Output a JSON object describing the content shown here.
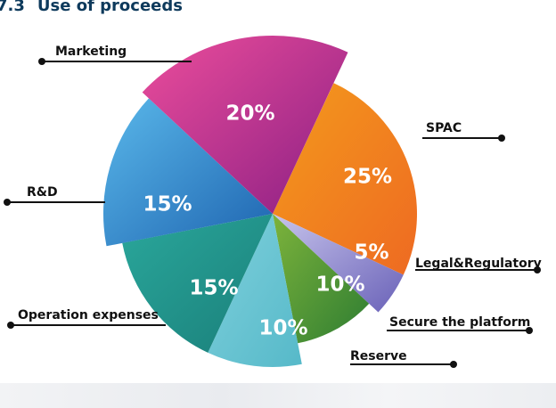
{
  "header": {
    "number": "7.3",
    "title": "Use of proceeds"
  },
  "chart_data": {
    "type": "pie",
    "slices": [
      {
        "label": "SPAC",
        "value": 25,
        "display": "25%",
        "color": "#f49a1c",
        "color2": "#ee6a22"
      },
      {
        "label": "Legal&Regulatory",
        "value": 5,
        "display": "5%",
        "color": "#c7c4ec",
        "color2": "#6a62b8"
      },
      {
        "label": "Secure the platform",
        "value": 10,
        "display": "10%",
        "color": "#7db33b",
        "color2": "#2e7d32"
      },
      {
        "label": "Reserve",
        "value": 10,
        "display": "10%",
        "color": "#7fd0dc",
        "color2": "#56b9c9"
      },
      {
        "label": "Operation expenses",
        "value": 15,
        "display": "15%",
        "color": "#2aa79b",
        "color2": "#1a7f7a"
      },
      {
        "label": "R&D",
        "value": 15,
        "display": "15%",
        "color": "#5ab8ea",
        "color2": "#1e64b0"
      },
      {
        "label": "Marketing",
        "value": 20,
        "display": "20%",
        "color": "#ec4d9b",
        "color2": "#8a1f84"
      }
    ]
  }
}
